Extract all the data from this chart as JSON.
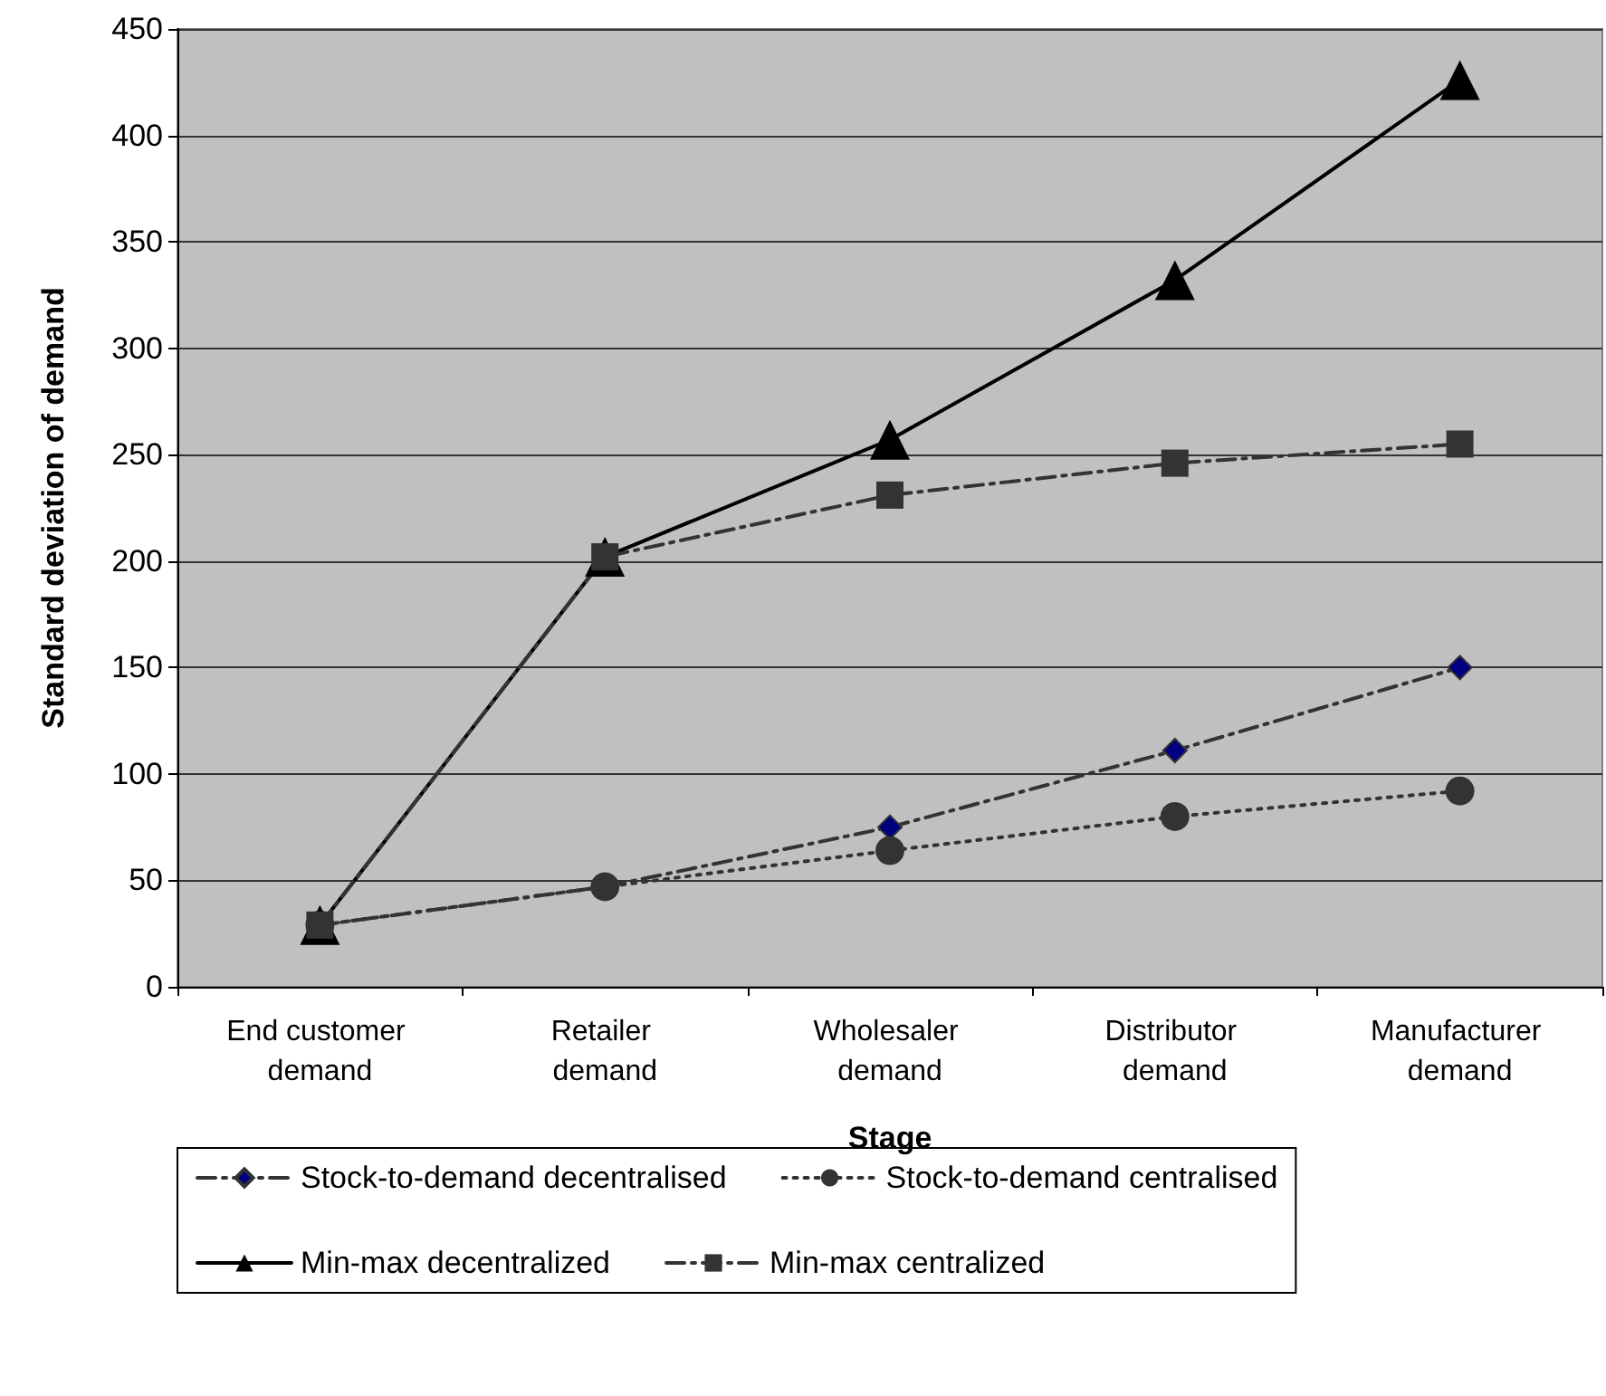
{
  "chart_data": {
    "type": "line",
    "xlabel": "Stage",
    "ylabel": "Standard deviation of demand",
    "categories": [
      "End customer demand",
      "Retailer demand",
      "Wholesaler demand",
      "Distributor demand",
      "Manufacturer demand"
    ],
    "ylim": [
      0,
      450
    ],
    "yticks": [
      0,
      50,
      100,
      150,
      200,
      250,
      300,
      350,
      400,
      450
    ],
    "grid": "y",
    "legend": "bottom",
    "series": [
      {
        "name": "Stock-to-demand decentralised",
        "color": "#000080",
        "marker": "diamond",
        "line_style": "dashed",
        "values": [
          29,
          47,
          75,
          111,
          150
        ]
      },
      {
        "name": "Stock-to-demand centralised",
        "color": "#333333",
        "marker": "circle",
        "line_style": "dotted",
        "values": [
          29,
          47,
          64,
          80,
          92
        ]
      },
      {
        "name": "Min-max decentralized",
        "color": "#000000",
        "marker": "triangle",
        "line_style": "solid",
        "values": [
          29,
          202,
          257,
          332,
          426
        ]
      },
      {
        "name": "Min-max centralized",
        "color": "#333333",
        "marker": "square",
        "line_style": "dashed",
        "values": [
          29,
          202,
          231,
          246,
          255
        ]
      }
    ]
  }
}
